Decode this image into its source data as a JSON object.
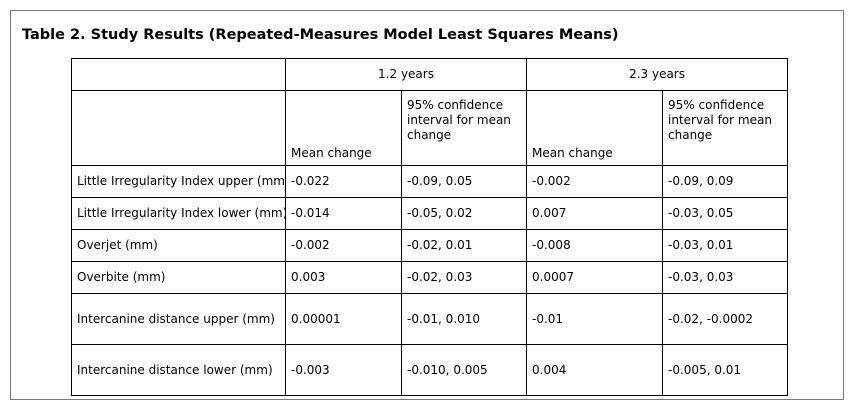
{
  "title": "Table 2. Study Results (Repeated-Measures Model Least Squares Means)",
  "groups": [
    "1.2 years",
    "2.3 years"
  ],
  "subheaders": [
    "Mean change",
    "95% confidence interval for mean change",
    "Mean change",
    "95% confidence interval for mean change"
  ],
  "rows": [
    {
      "label": "Little Irregularity Index upper (mm)",
      "cells": [
        "-0.022",
        "-0.09, 0.05",
        "-0.002",
        "-0.09, 0.09"
      ]
    },
    {
      "label": "Little Irregularity Index lower (mm)",
      "cells": [
        "-0.014",
        "-0.05, 0.02",
        "0.007",
        "-0.03, 0.05"
      ]
    },
    {
      "label": "Overjet (mm)",
      "cells": [
        "-0.002",
        "-0.02, 0.01",
        "-0.008",
        "-0.03, 0.01"
      ]
    },
    {
      "label": "Overbite (mm)",
      "cells": [
        "0.003",
        "-0.02, 0.03",
        "0.0007",
        "-0.03, 0.03"
      ]
    },
    {
      "label": "Intercanine distance upper (mm)",
      "cells": [
        "0.00001",
        "-0.01, 0.010",
        "-0.01",
        "-0.02, -0.0002"
      ]
    },
    {
      "label": "Intercanine distance lower (mm)",
      "cells": [
        "-0.003",
        "-0.010, 0.005",
        "0.004",
        "-0.005, 0.01"
      ]
    }
  ]
}
